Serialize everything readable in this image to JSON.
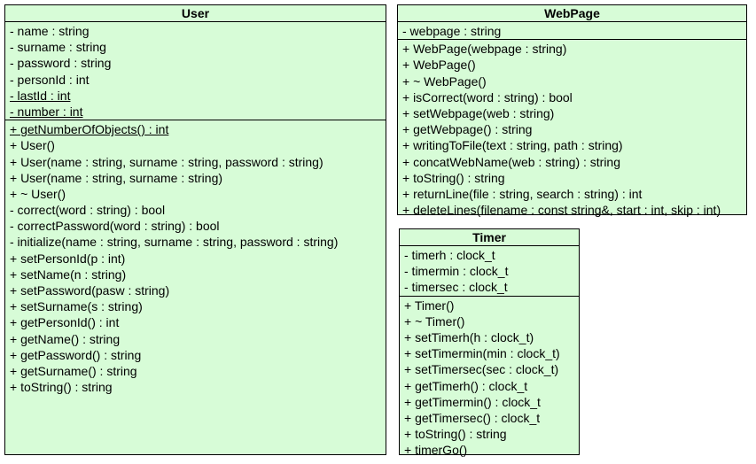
{
  "classes": {
    "user": {
      "name": "User",
      "attributes": [
        {
          "text": "- name : string",
          "static": false
        },
        {
          "text": "- surname : string",
          "static": false
        },
        {
          "text": "- password : string",
          "static": false
        },
        {
          "text": "- personId : int",
          "static": false
        },
        {
          "text": "- lastId : int",
          "static": true
        },
        {
          "text": "- number : int",
          "static": true
        }
      ],
      "operations": [
        {
          "text": "+ getNumberOfObjects() : int",
          "static": true
        },
        {
          "text": "+ User()",
          "static": false
        },
        {
          "text": "+ User(name : string, surname : string, password : string)",
          "static": false
        },
        {
          "text": "+ User(name : string, surname : string)",
          "static": false
        },
        {
          "text": "+ ~ User()",
          "static": false
        },
        {
          "text": "- correct(word : string) : bool",
          "static": false
        },
        {
          "text": "- correctPassword(word : string) : bool",
          "static": false
        },
        {
          "text": "- initialize(name : string, surname : string, password : string)",
          "static": false
        },
        {
          "text": "+ setPersonId(p : int)",
          "static": false
        },
        {
          "text": "+ setName(n : string)",
          "static": false
        },
        {
          "text": "+ setPassword(pasw : string)",
          "static": false
        },
        {
          "text": "+ setSurname(s : string)",
          "static": false
        },
        {
          "text": "+ getPersonId() : int",
          "static": false
        },
        {
          "text": "+ getName() : string",
          "static": false
        },
        {
          "text": "+ getPassword() : string",
          "static": false
        },
        {
          "text": "+ getSurname() : string",
          "static": false
        },
        {
          "text": "+ toString() : string",
          "static": false
        }
      ]
    },
    "webpage": {
      "name": "WebPage",
      "attributes": [
        {
          "text": "- webpage : string",
          "static": false
        }
      ],
      "operations": [
        {
          "text": "+ WebPage(webpage : string)",
          "static": false
        },
        {
          "text": "+ WebPage()",
          "static": false
        },
        {
          "text": "+ ~ WebPage()",
          "static": false
        },
        {
          "text": "+ isCorrect(word : string) : bool",
          "static": false
        },
        {
          "text": "+ setWebpage(web : string)",
          "static": false
        },
        {
          "text": "+ getWebpage() : string",
          "static": false
        },
        {
          "text": "+ writingToFile(text : string, path : string)",
          "static": false
        },
        {
          "text": "+ concatWebName(web : string) : string",
          "static": false
        },
        {
          "text": "+ toString() : string",
          "static": false
        },
        {
          "text": "+ returnLine(file : string, search : string) : int",
          "static": false
        },
        {
          "text": "+ deleteLines(filename : const string&, start : int, skip : int)",
          "static": false
        }
      ]
    },
    "timer": {
      "name": "Timer",
      "attributes": [
        {
          "text": "- timerh : clock_t",
          "static": false
        },
        {
          "text": "- timermin : clock_t",
          "static": false
        },
        {
          "text": "- timersec : clock_t",
          "static": false
        }
      ],
      "operations": [
        {
          "text": "+ Timer()",
          "static": false
        },
        {
          "text": "+ ~ Timer()",
          "static": false
        },
        {
          "text": "+ setTimerh(h : clock_t)",
          "static": false
        },
        {
          "text": "+ setTimermin(min : clock_t)",
          "static": false
        },
        {
          "text": "+ setTimersec(sec : clock_t)",
          "static": false
        },
        {
          "text": "+ getTimerh() : clock_t",
          "static": false
        },
        {
          "text": "+ getTimermin() : clock_t",
          "static": false
        },
        {
          "text": "+ getTimersec() : clock_t",
          "static": false
        },
        {
          "text": "+ toString() : string",
          "static": false
        },
        {
          "text": "+ timerGo()",
          "static": false
        }
      ]
    }
  },
  "colors": {
    "class_fill": "#d7fcd7",
    "border": "#000000"
  }
}
